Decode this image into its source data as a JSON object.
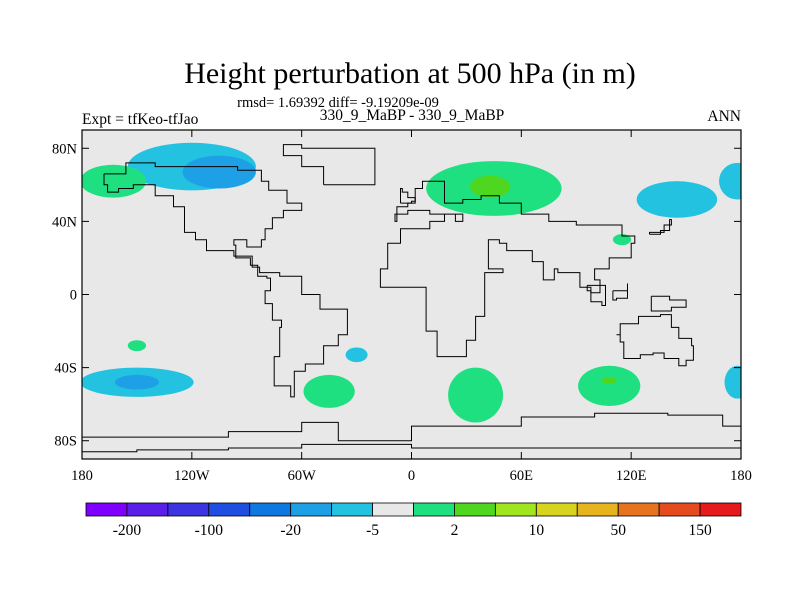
{
  "chart_data": {
    "type": "heatmap",
    "title": "Height perturbation at 500 hPa (in m)",
    "subtitle": "rmsd= 1.69392 diff= -9.19209e-09",
    "left_label": "Expt = tfKeo-tfJao",
    "center_label": "330_9_MaBP - 330_9_MaBP",
    "right_label": "ANN",
    "x_range": [
      -180,
      180
    ],
    "y_range": [
      -90,
      90
    ],
    "x_ticks": [
      {
        "value": -180,
        "label": "180"
      },
      {
        "value": -120,
        "label": "120W"
      },
      {
        "value": -60,
        "label": "60W"
      },
      {
        "value": 0,
        "label": "0"
      },
      {
        "value": 60,
        "label": "60E"
      },
      {
        "value": 120,
        "label": "120E"
      },
      {
        "value": 180,
        "label": "180"
      }
    ],
    "y_ticks": [
      {
        "value": 80,
        "label": "80N"
      },
      {
        "value": 40,
        "label": "40N"
      },
      {
        "value": 0,
        "label": "0"
      },
      {
        "value": -40,
        "label": "40S"
      },
      {
        "value": -80,
        "label": "80S"
      }
    ],
    "background_color": "#e8e8e8",
    "colorbar": {
      "colors": [
        "#7f00ff",
        "#5a1fe8",
        "#3d33e0",
        "#1f4fe0",
        "#0f77e0",
        "#1ea0e6",
        "#22c2e0",
        "#e8e8e8",
        "#1fe081",
        "#4fd61f",
        "#a0e61e",
        "#d6d41f",
        "#e6b41e",
        "#e6741f",
        "#e64a1f",
        "#e61a1a"
      ],
      "labels": [
        {
          "label": "-200",
          "boundary": 1
        },
        {
          "label": "-100",
          "boundary": 3
        },
        {
          "label": "-20",
          "boundary": 5
        },
        {
          "label": "-5",
          "boundary": 7
        },
        {
          "label": "2",
          "boundary": 9
        },
        {
          "label": "10",
          "boundary": 11
        },
        {
          "label": "50",
          "boundary": 13
        },
        {
          "label": "150",
          "boundary": 15
        }
      ]
    },
    "anomalies": [
      {
        "lon": -120,
        "lat": 70,
        "rx": 35,
        "ry": 13,
        "level": "-5 to -2",
        "color": "#22c2e0"
      },
      {
        "lon": -105,
        "lat": 67,
        "rx": 20,
        "ry": 9,
        "level": "-10 to -5",
        "color": "#1ea0e6"
      },
      {
        "lon": 145,
        "lat": 52,
        "rx": 22,
        "ry": 10,
        "level": "-5 to -2",
        "color": "#22c2e0"
      },
      {
        "lon": 115,
        "lat": 30,
        "rx": 5,
        "ry": 3,
        "level": "2 to 5",
        "color": "#1fe081"
      },
      {
        "lon": 178,
        "lat": 62,
        "rx": 10,
        "ry": 10,
        "level": "-5 to -2",
        "color": "#22c2e0"
      },
      {
        "lon": -163,
        "lat": 62,
        "rx": 18,
        "ry": 9,
        "level": "2 to 5",
        "color": "#1fe081"
      },
      {
        "lon": 45,
        "lat": 58,
        "rx": 37,
        "ry": 15,
        "level": "2 to 5",
        "color": "#1fe081"
      },
      {
        "lon": 43,
        "lat": 59,
        "rx": 11,
        "ry": 6,
        "level": "5 to 10",
        "color": "#4fd61f"
      },
      {
        "lon": -150,
        "lat": -48,
        "rx": 31,
        "ry": 8,
        "level": "-5 to -2",
        "color": "#22c2e0"
      },
      {
        "lon": -150,
        "lat": -48,
        "rx": 12,
        "ry": 4,
        "level": "-10 to -5",
        "color": "#1ea0e6"
      },
      {
        "lon": -45,
        "lat": -53,
        "rx": 14,
        "ry": 9,
        "level": "2 to 5",
        "color": "#1fe081"
      },
      {
        "lon": -30,
        "lat": -33,
        "rx": 6,
        "ry": 4,
        "level": "-5 to -2",
        "color": "#22c2e0"
      },
      {
        "lon": -150,
        "lat": -28,
        "rx": 5,
        "ry": 3,
        "level": "2 to 5",
        "color": "#1fe081"
      },
      {
        "lon": 35,
        "lat": -55,
        "rx": 15,
        "ry": 15,
        "level": "2 to 5",
        "color": "#1fe081"
      },
      {
        "lon": 108,
        "lat": -50,
        "rx": 17,
        "ry": 11,
        "level": "2 to 5",
        "color": "#1fe081"
      },
      {
        "lon": 108,
        "lat": -47,
        "rx": 4,
        "ry": 2,
        "level": "5 to 10",
        "color": "#4fd61f"
      },
      {
        "lon": -178,
        "lat": 0,
        "rx": 1,
        "ry": 1,
        "level": "bg",
        "color": "#e8e8e8"
      },
      {
        "lon": 178,
        "lat": -48,
        "rx": 7,
        "ry": 9,
        "level": "-5 to -2",
        "color": "#22c2e0"
      }
    ],
    "coastlines": [
      [
        [
          10,
          62
        ],
        [
          18,
          62
        ],
        [
          18,
          50
        ],
        [
          28,
          52
        ],
        [
          38,
          54
        ],
        [
          48,
          50
        ],
        [
          60,
          44
        ],
        [
          75,
          40
        ],
        [
          90,
          38
        ],
        [
          110,
          38
        ],
        [
          115,
          32
        ],
        [
          122,
          28
        ],
        [
          120,
          20
        ],
        [
          108,
          14
        ],
        [
          100,
          8
        ],
        [
          103,
          1
        ],
        [
          98,
          4
        ],
        [
          92,
          12
        ],
        [
          80,
          14
        ],
        [
          78,
          8
        ],
        [
          72,
          18
        ],
        [
          66,
          24
        ],
        [
          58,
          24
        ],
        [
          52,
          28
        ],
        [
          48,
          30
        ],
        [
          42,
          14
        ],
        [
          50,
          12
        ],
        [
          40,
          -2
        ],
        [
          40,
          -12
        ],
        [
          35,
          -25
        ],
        [
          30,
          -34
        ],
        [
          20,
          -34
        ],
        [
          14,
          -20
        ],
        [
          8,
          -2
        ],
        [
          8,
          4
        ],
        [
          -6,
          4
        ],
        [
          -17,
          14
        ],
        [
          -13,
          28
        ],
        [
          -6,
          36
        ],
        [
          10,
          40
        ],
        [
          18,
          44
        ],
        [
          24,
          40
        ],
        [
          28,
          44
        ],
        [
          10,
          46
        ],
        [
          -2,
          44
        ],
        [
          -9,
          40
        ],
        [
          -8,
          48
        ],
        [
          -2,
          50
        ],
        [
          2,
          58
        ],
        [
          6,
          62
        ],
        [
          10,
          62
        ]
      ],
      [
        [
          -168,
          66
        ],
        [
          -156,
          72
        ],
        [
          -140,
          70
        ],
        [
          -125,
          70
        ],
        [
          -95,
          68
        ],
        [
          -82,
          62
        ],
        [
          -78,
          57
        ],
        [
          -68,
          50
        ],
        [
          -60,
          46
        ],
        [
          -70,
          42
        ],
        [
          -76,
          36
        ],
        [
          -80,
          30
        ],
        [
          -82,
          26
        ],
        [
          -90,
          30
        ],
        [
          -97,
          27
        ],
        [
          -96,
          20
        ],
        [
          -88,
          16
        ],
        [
          -84,
          10
        ],
        [
          -79,
          9
        ],
        [
          -77,
          2
        ],
        [
          -80,
          -5
        ],
        [
          -76,
          -14
        ],
        [
          -71,
          -18
        ],
        [
          -72,
          -34
        ],
        [
          -75,
          -50
        ],
        [
          -66,
          -56
        ],
        [
          -64,
          -42
        ],
        [
          -58,
          -38
        ],
        [
          -48,
          -28
        ],
        [
          -40,
          -22
        ],
        [
          -35,
          -8
        ],
        [
          -50,
          0
        ],
        [
          -60,
          10
        ],
        [
          -72,
          12
        ],
        [
          -83,
          15
        ],
        [
          -87,
          21
        ],
        [
          -97,
          24
        ],
        [
          -106,
          24
        ],
        [
          -112,
          30
        ],
        [
          -118,
          34
        ],
        [
          -124,
          42
        ],
        [
          -124,
          48
        ],
        [
          -130,
          54
        ],
        [
          -140,
          60
        ],
        [
          -152,
          58
        ],
        [
          -160,
          56
        ],
        [
          -166,
          60
        ],
        [
          -168,
          66
        ]
      ],
      [
        [
          112,
          -22
        ],
        [
          114,
          -26
        ],
        [
          116,
          -35
        ],
        [
          125,
          -33
        ],
        [
          132,
          -32
        ],
        [
          138,
          -35
        ],
        [
          146,
          -39
        ],
        [
          150,
          -36
        ],
        [
          154,
          -28
        ],
        [
          153,
          -24
        ],
        [
          146,
          -18
        ],
        [
          142,
          -11
        ],
        [
          136,
          -12
        ],
        [
          130,
          -12
        ],
        [
          124,
          -16
        ],
        [
          114,
          -22
        ],
        [
          112,
          -22
        ]
      ],
      [
        [
          96,
          5
        ],
        [
          106,
          -6
        ],
        [
          104,
          -4
        ],
        [
          98,
          2
        ],
        [
          96,
          5
        ]
      ],
      [
        [
          110,
          2
        ],
        [
          118,
          6
        ],
        [
          118,
          -2
        ],
        [
          112,
          -3
        ],
        [
          110,
          2
        ]
      ],
      [
        [
          131,
          -1
        ],
        [
          141,
          -3
        ],
        [
          150,
          -7
        ],
        [
          142,
          -9
        ],
        [
          131,
          -1
        ]
      ],
      [
        [
          130,
          33
        ],
        [
          136,
          35
        ],
        [
          141,
          41
        ],
        [
          142,
          38
        ],
        [
          138,
          34
        ],
        [
          130,
          33
        ]
      ],
      [
        [
          -6,
          50
        ],
        [
          0,
          51
        ],
        [
          2,
          53
        ],
        [
          -2,
          56
        ],
        [
          -5,
          58
        ],
        [
          -6,
          54
        ],
        [
          -6,
          50
        ]
      ],
      [
        [
          -48,
          60
        ],
        [
          -42,
          60
        ],
        [
          -20,
          70
        ],
        [
          -20,
          80
        ],
        [
          -60,
          82
        ],
        [
          -70,
          76
        ],
        [
          -60,
          70
        ],
        [
          -48,
          60
        ]
      ],
      [
        [
          -180,
          -78
        ],
        [
          -150,
          -78
        ],
        [
          -100,
          -75
        ],
        [
          -60,
          -70
        ],
        [
          -40,
          -80
        ],
        [
          0,
          -72
        ],
        [
          60,
          -67
        ],
        [
          100,
          -65
        ],
        [
          140,
          -66
        ],
        [
          170,
          -72
        ],
        [
          180,
          -78
        ]
      ],
      [
        [
          -180,
          -86
        ],
        [
          -150,
          -85
        ],
        [
          -100,
          -84
        ],
        [
          -60,
          -82
        ],
        [
          0,
          -84
        ],
        [
          60,
          -84
        ],
        [
          120,
          -84
        ],
        [
          180,
          -86
        ]
      ]
    ]
  }
}
